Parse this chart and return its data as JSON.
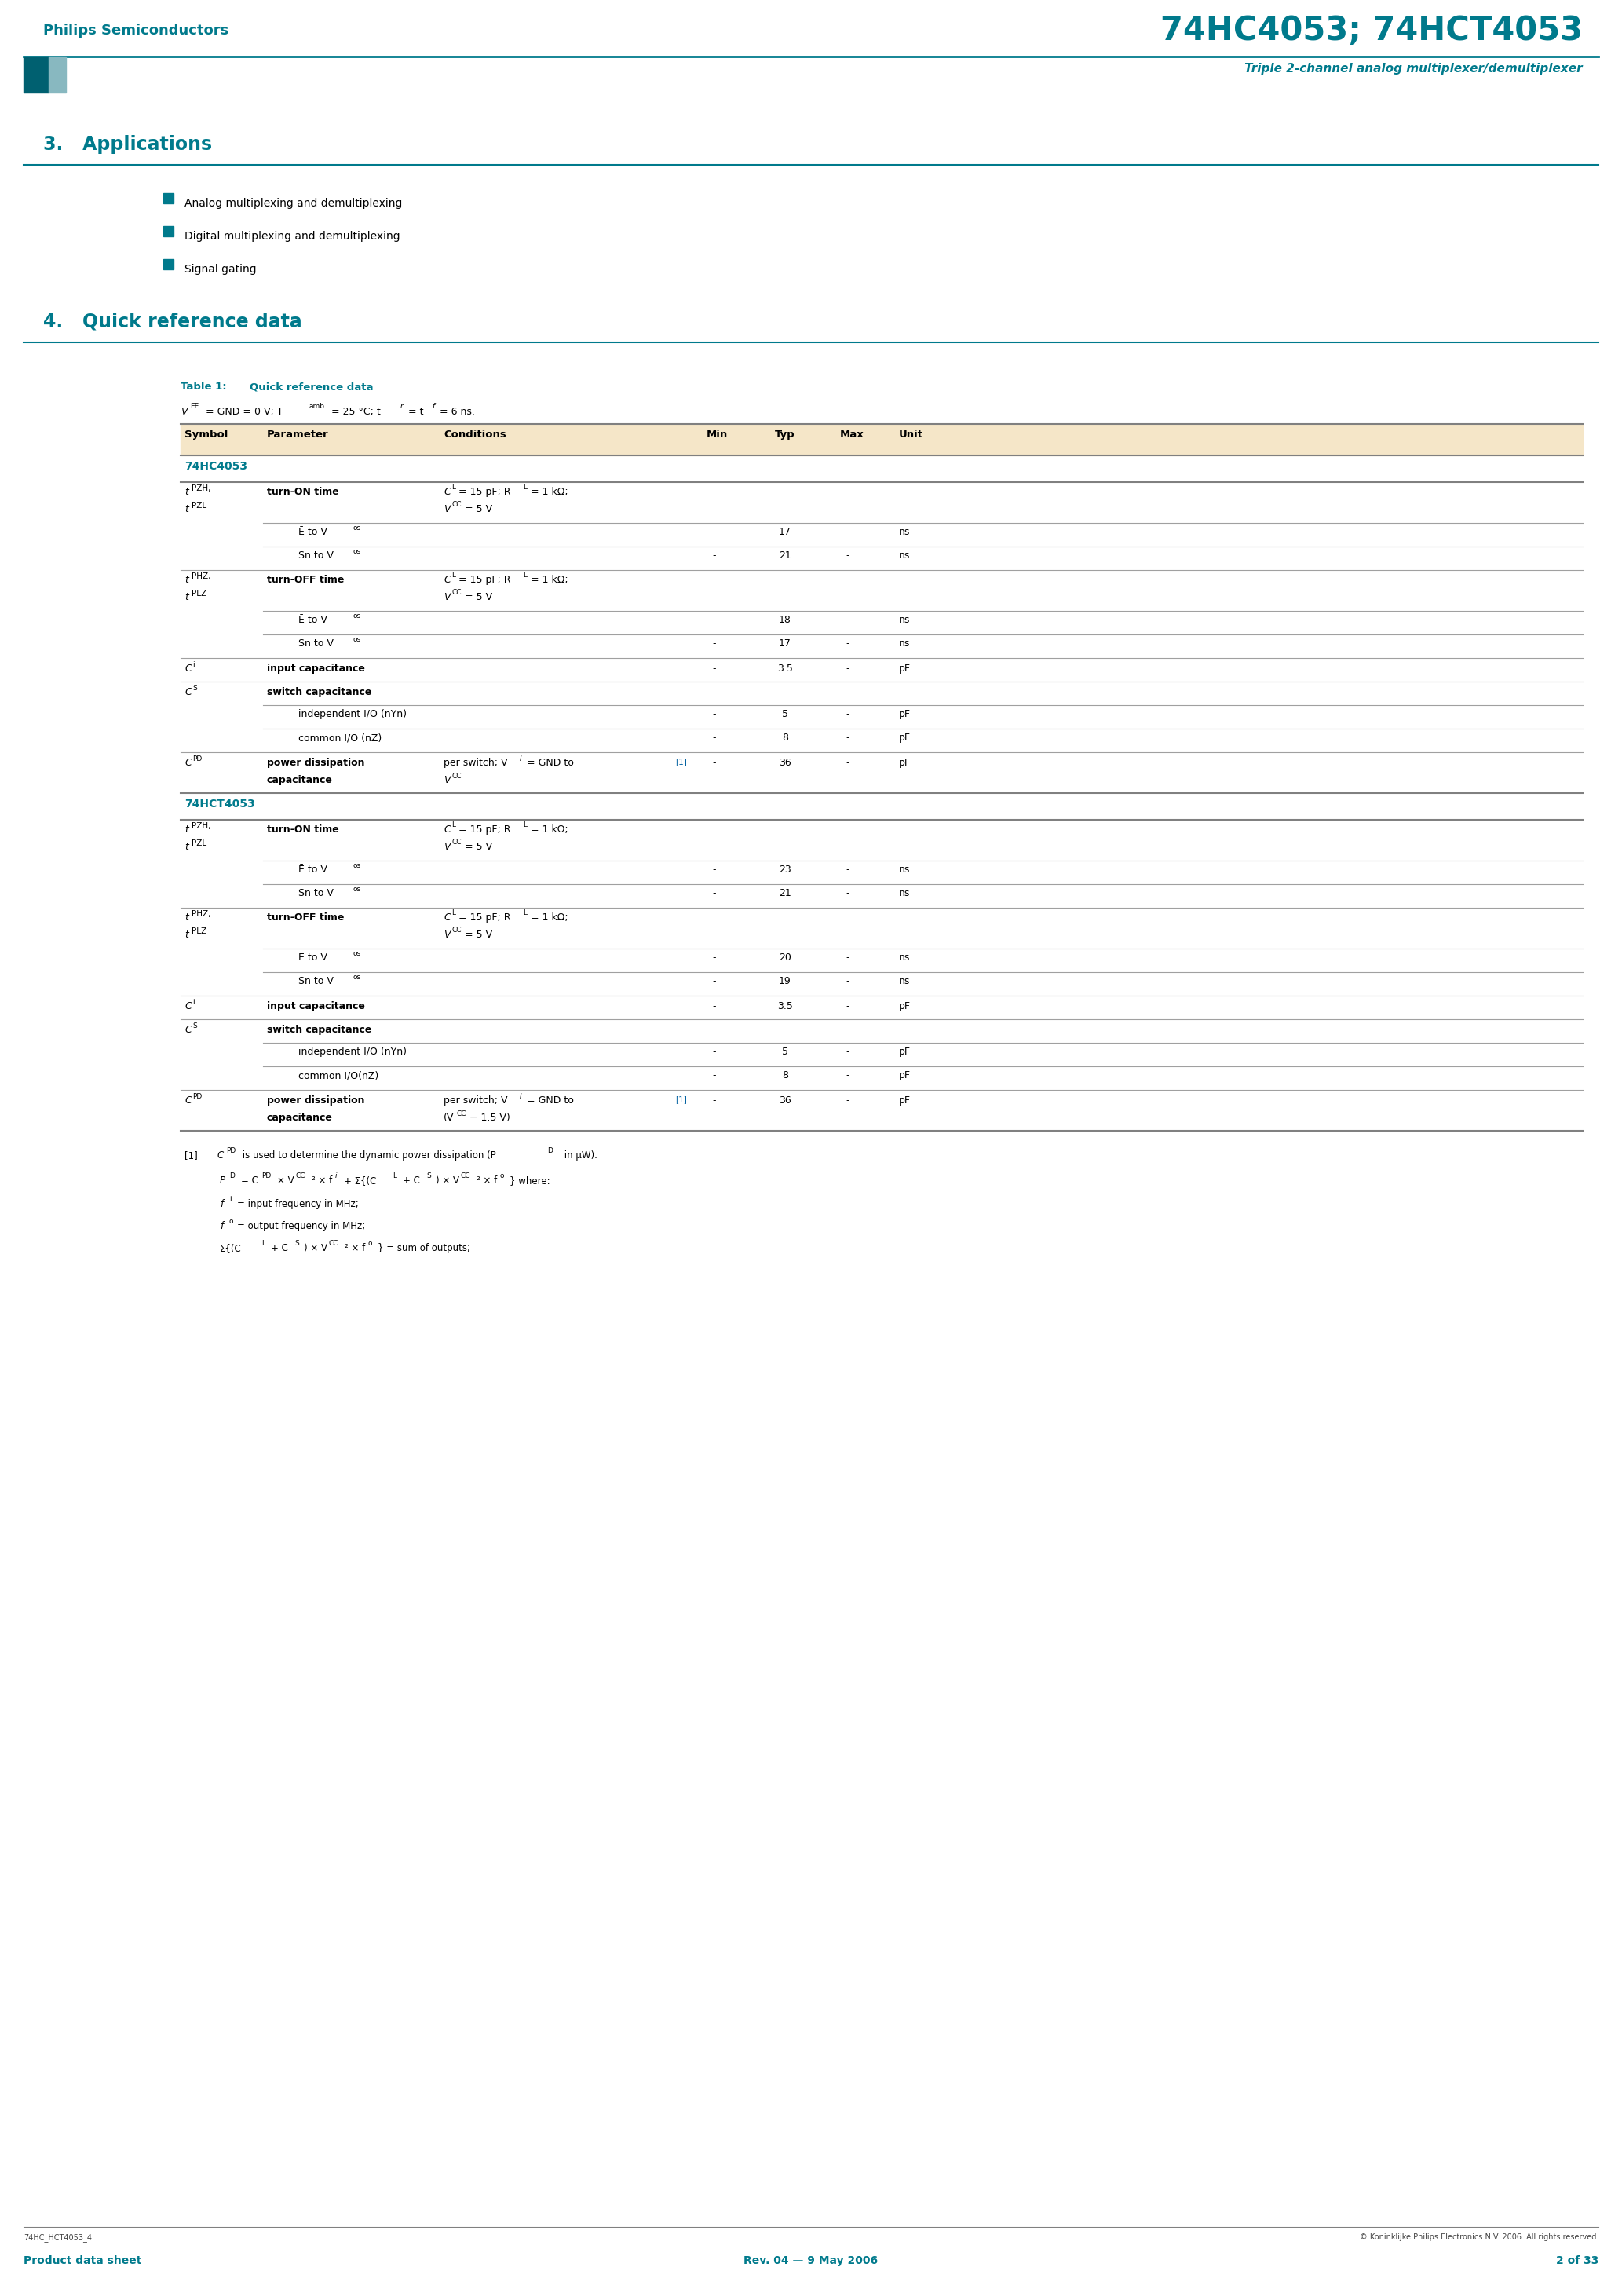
{
  "page_width": 20.66,
  "page_height": 29.24,
  "bg_color": "#ffffff",
  "teal": "#007A8C",
  "header_company": "Philips Semiconductors",
  "header_title": "74HC4053; 74HCT4053",
  "header_subtitle": "Triple 2-channel analog multiplexer/demultiplexer",
  "section3": "3.   Applications",
  "applications": [
    "Analog multiplexing and demultiplexing",
    "Digital multiplexing and demultiplexing",
    "Signal gating"
  ],
  "section4": "4.   Quick reference data",
  "table_header_bg": "#F5E6C8",
  "footer_left": "74HC_HCT4053_4",
  "footer_right": "© Koninklijke Philips Electronics N.V. 2006. All rights reserved.",
  "footer_product": "Product data sheet",
  "footer_rev": "Rev. 04 — 9 May 2006",
  "footer_page": "2 of 33"
}
